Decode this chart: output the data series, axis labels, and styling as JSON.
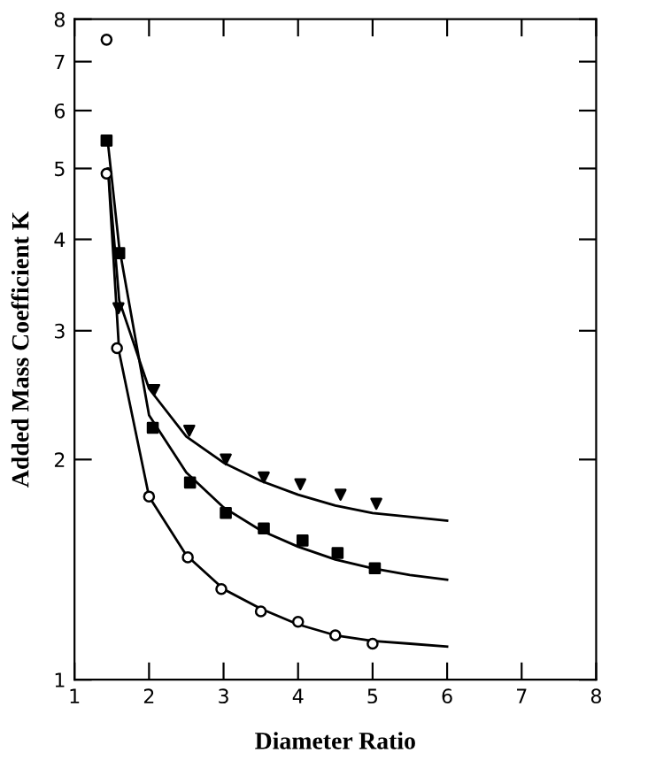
{
  "chart_data": {
    "type": "scatter",
    "xlabel": "Diameter Ratio",
    "ylabel": "Added Mass Coefficient K",
    "log": "y",
    "xlim": [
      1,
      8
    ],
    "xticks": [
      1,
      2,
      3,
      4,
      5,
      6,
      7,
      8
    ],
    "ylim": [
      1,
      8
    ],
    "yticks": [
      1,
      2,
      3,
      4,
      5,
      6,
      7,
      8
    ],
    "grid": false,
    "legend": false,
    "series": [
      {
        "marker": "circle",
        "color": "#000000",
        "x": [
          1.43,
          1.43,
          1.57,
          2.0,
          2.52,
          2.97,
          3.5,
          4.0,
          4.5,
          5.0
        ],
        "values": [
          7.5,
          4.92,
          2.84,
          1.78,
          1.47,
          1.33,
          1.24,
          1.2,
          1.15,
          1.12
        ]
      },
      {
        "marker": "square",
        "color": "#000000",
        "x": [
          1.43,
          1.6,
          2.05,
          2.55,
          3.03,
          3.54,
          4.06,
          4.53,
          5.03
        ],
        "values": [
          5.46,
          3.83,
          2.21,
          1.86,
          1.69,
          1.61,
          1.55,
          1.49,
          1.42
        ]
      },
      {
        "marker": "triangle",
        "color": "#000000",
        "x": [
          1.59,
          2.07,
          2.54,
          3.03,
          3.54,
          4.03,
          4.57,
          5.05
        ],
        "values": [
          3.22,
          2.49,
          2.19,
          2.0,
          1.89,
          1.85,
          1.79,
          1.74
        ]
      },
      {
        "type": "line",
        "color": "#000000",
        "x": [
          1.45,
          1.6,
          2.0,
          2.5,
          3.0,
          3.5,
          4.0,
          4.5,
          5.0,
          5.5,
          6.0
        ],
        "values": [
          5.0,
          2.8,
          1.78,
          1.48,
          1.33,
          1.25,
          1.19,
          1.15,
          1.13,
          1.12,
          1.11
        ]
      },
      {
        "type": "line",
        "color": "#000000",
        "x": [
          1.45,
          1.6,
          2.0,
          2.5,
          3.0,
          3.5,
          4.0,
          4.5,
          5.0,
          5.5,
          6.0
        ],
        "values": [
          5.4,
          3.9,
          2.3,
          1.92,
          1.72,
          1.6,
          1.52,
          1.46,
          1.42,
          1.39,
          1.37
        ]
      },
      {
        "type": "line",
        "color": "#000000",
        "x": [
          1.45,
          1.6,
          2.0,
          2.5,
          3.0,
          3.5,
          4.0,
          4.5,
          5.0,
          5.5,
          6.0
        ],
        "values": [
          5.0,
          3.3,
          2.5,
          2.15,
          1.98,
          1.87,
          1.79,
          1.73,
          1.69,
          1.67,
          1.65
        ]
      }
    ]
  }
}
